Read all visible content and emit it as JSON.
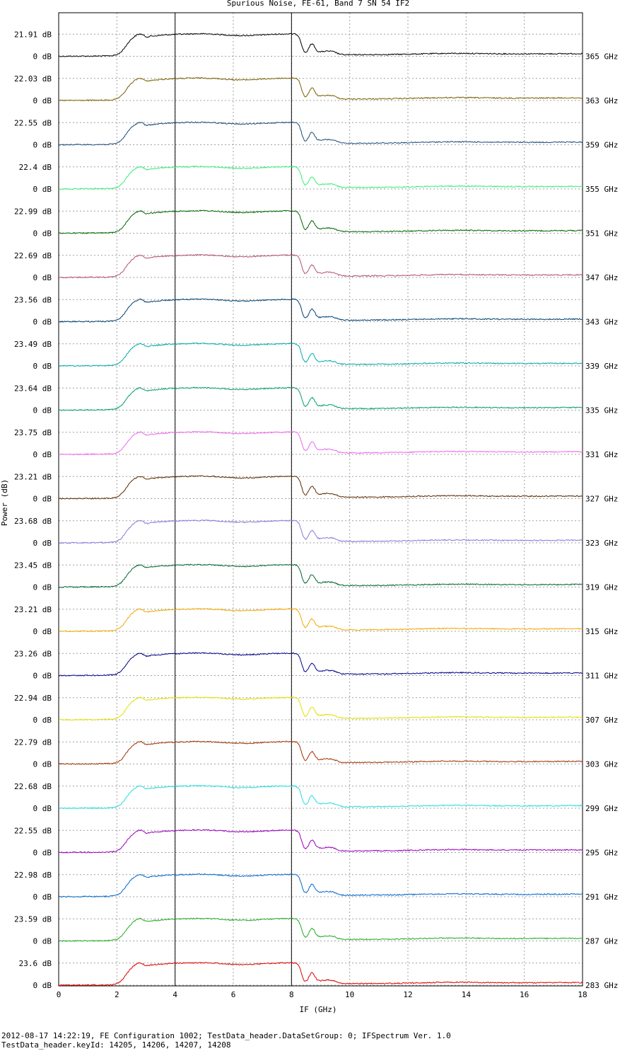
{
  "chart_data": {
    "type": "line",
    "title": "Spurious Noise, FE-61, Band 7 SN 54 IF2",
    "xlabel": "IF (GHz)",
    "ylabel": "Power (dB)",
    "xlim": [
      0,
      18
    ],
    "xticks": [
      "0",
      "2",
      "4",
      "6",
      "8",
      "10",
      "12",
      "14",
      "16",
      "18"
    ],
    "markers_x": [
      4,
      8
    ],
    "grid": true,
    "stacked_offsets": true,
    "zero_label": "0 dB",
    "series": [
      {
        "name": "365 GHz",
        "peak_label": "21.91 dB",
        "peak_db": 21.91,
        "color": "#000000"
      },
      {
        "name": "363 GHz",
        "peak_label": "22.03 dB",
        "peak_db": 22.03,
        "color": "#7a6000"
      },
      {
        "name": "359 GHz",
        "peak_label": "22.55 dB",
        "peak_db": 22.55,
        "color": "#1f4a78"
      },
      {
        "name": "355 GHz",
        "peak_label": "22.4 dB",
        "peak_db": 22.4,
        "color": "#33ee77"
      },
      {
        "name": "351 GHz",
        "peak_label": "22.99 dB",
        "peak_db": 22.99,
        "color": "#006600"
      },
      {
        "name": "347 GHz",
        "peak_label": "22.69 dB",
        "peak_db": 22.69,
        "color": "#b05070"
      },
      {
        "name": "343 GHz",
        "peak_label": "23.56 dB",
        "peak_db": 23.56,
        "color": "#004070"
      },
      {
        "name": "339 GHz",
        "peak_label": "23.49 dB",
        "peak_db": 23.49,
        "color": "#00aaaa"
      },
      {
        "name": "335 GHz",
        "peak_label": "23.64 dB",
        "peak_db": 23.64,
        "color": "#00a060"
      },
      {
        "name": "331 GHz",
        "peak_label": "23.75 dB",
        "peak_db": 23.75,
        "color": "#ee66ee"
      },
      {
        "name": "327 GHz",
        "peak_label": "23.21 dB",
        "peak_db": 23.21,
        "color": "#5a2a00"
      },
      {
        "name": "323 GHz",
        "peak_label": "23.68 dB",
        "peak_db": 23.68,
        "color": "#8877dd"
      },
      {
        "name": "319 GHz",
        "peak_label": "23.45 dB",
        "peak_db": 23.45,
        "color": "#006633"
      },
      {
        "name": "315 GHz",
        "peak_label": "23.21 dB",
        "peak_db": 23.21,
        "color": "#f0a800"
      },
      {
        "name": "311 GHz",
        "peak_label": "23.26 dB",
        "peak_db": 23.26,
        "color": "#000088"
      },
      {
        "name": "307 GHz",
        "peak_label": "22.94 dB",
        "peak_db": 22.94,
        "color": "#e0e000"
      },
      {
        "name": "303 GHz",
        "peak_label": "22.79 dB",
        "peak_db": 22.79,
        "color": "#a03000"
      },
      {
        "name": "299 GHz",
        "peak_label": "22.68 dB",
        "peak_db": 22.68,
        "color": "#22dddd"
      },
      {
        "name": "295 GHz",
        "peak_label": "22.55 dB",
        "peak_db": 22.55,
        "color": "#9900bb"
      },
      {
        "name": "291 GHz",
        "peak_label": "22.98 dB",
        "peak_db": 22.98,
        "color": "#0066cc"
      },
      {
        "name": "287 GHz",
        "peak_label": "23.59 dB",
        "peak_db": 23.59,
        "color": "#22aa22"
      },
      {
        "name": "283 GHz",
        "peak_label": "23.6 dB",
        "peak_db": 23.6,
        "color": "#dd0000"
      }
    ]
  },
  "footer": {
    "line1": "2012-08-17 14:22:19, FE Configuration 1002; TestData_header.DataSetGroup: 0; IFSpectrum Ver. 1.0",
    "line2": "TestData_header.keyId: 14205, 14206, 14207, 14208"
  }
}
